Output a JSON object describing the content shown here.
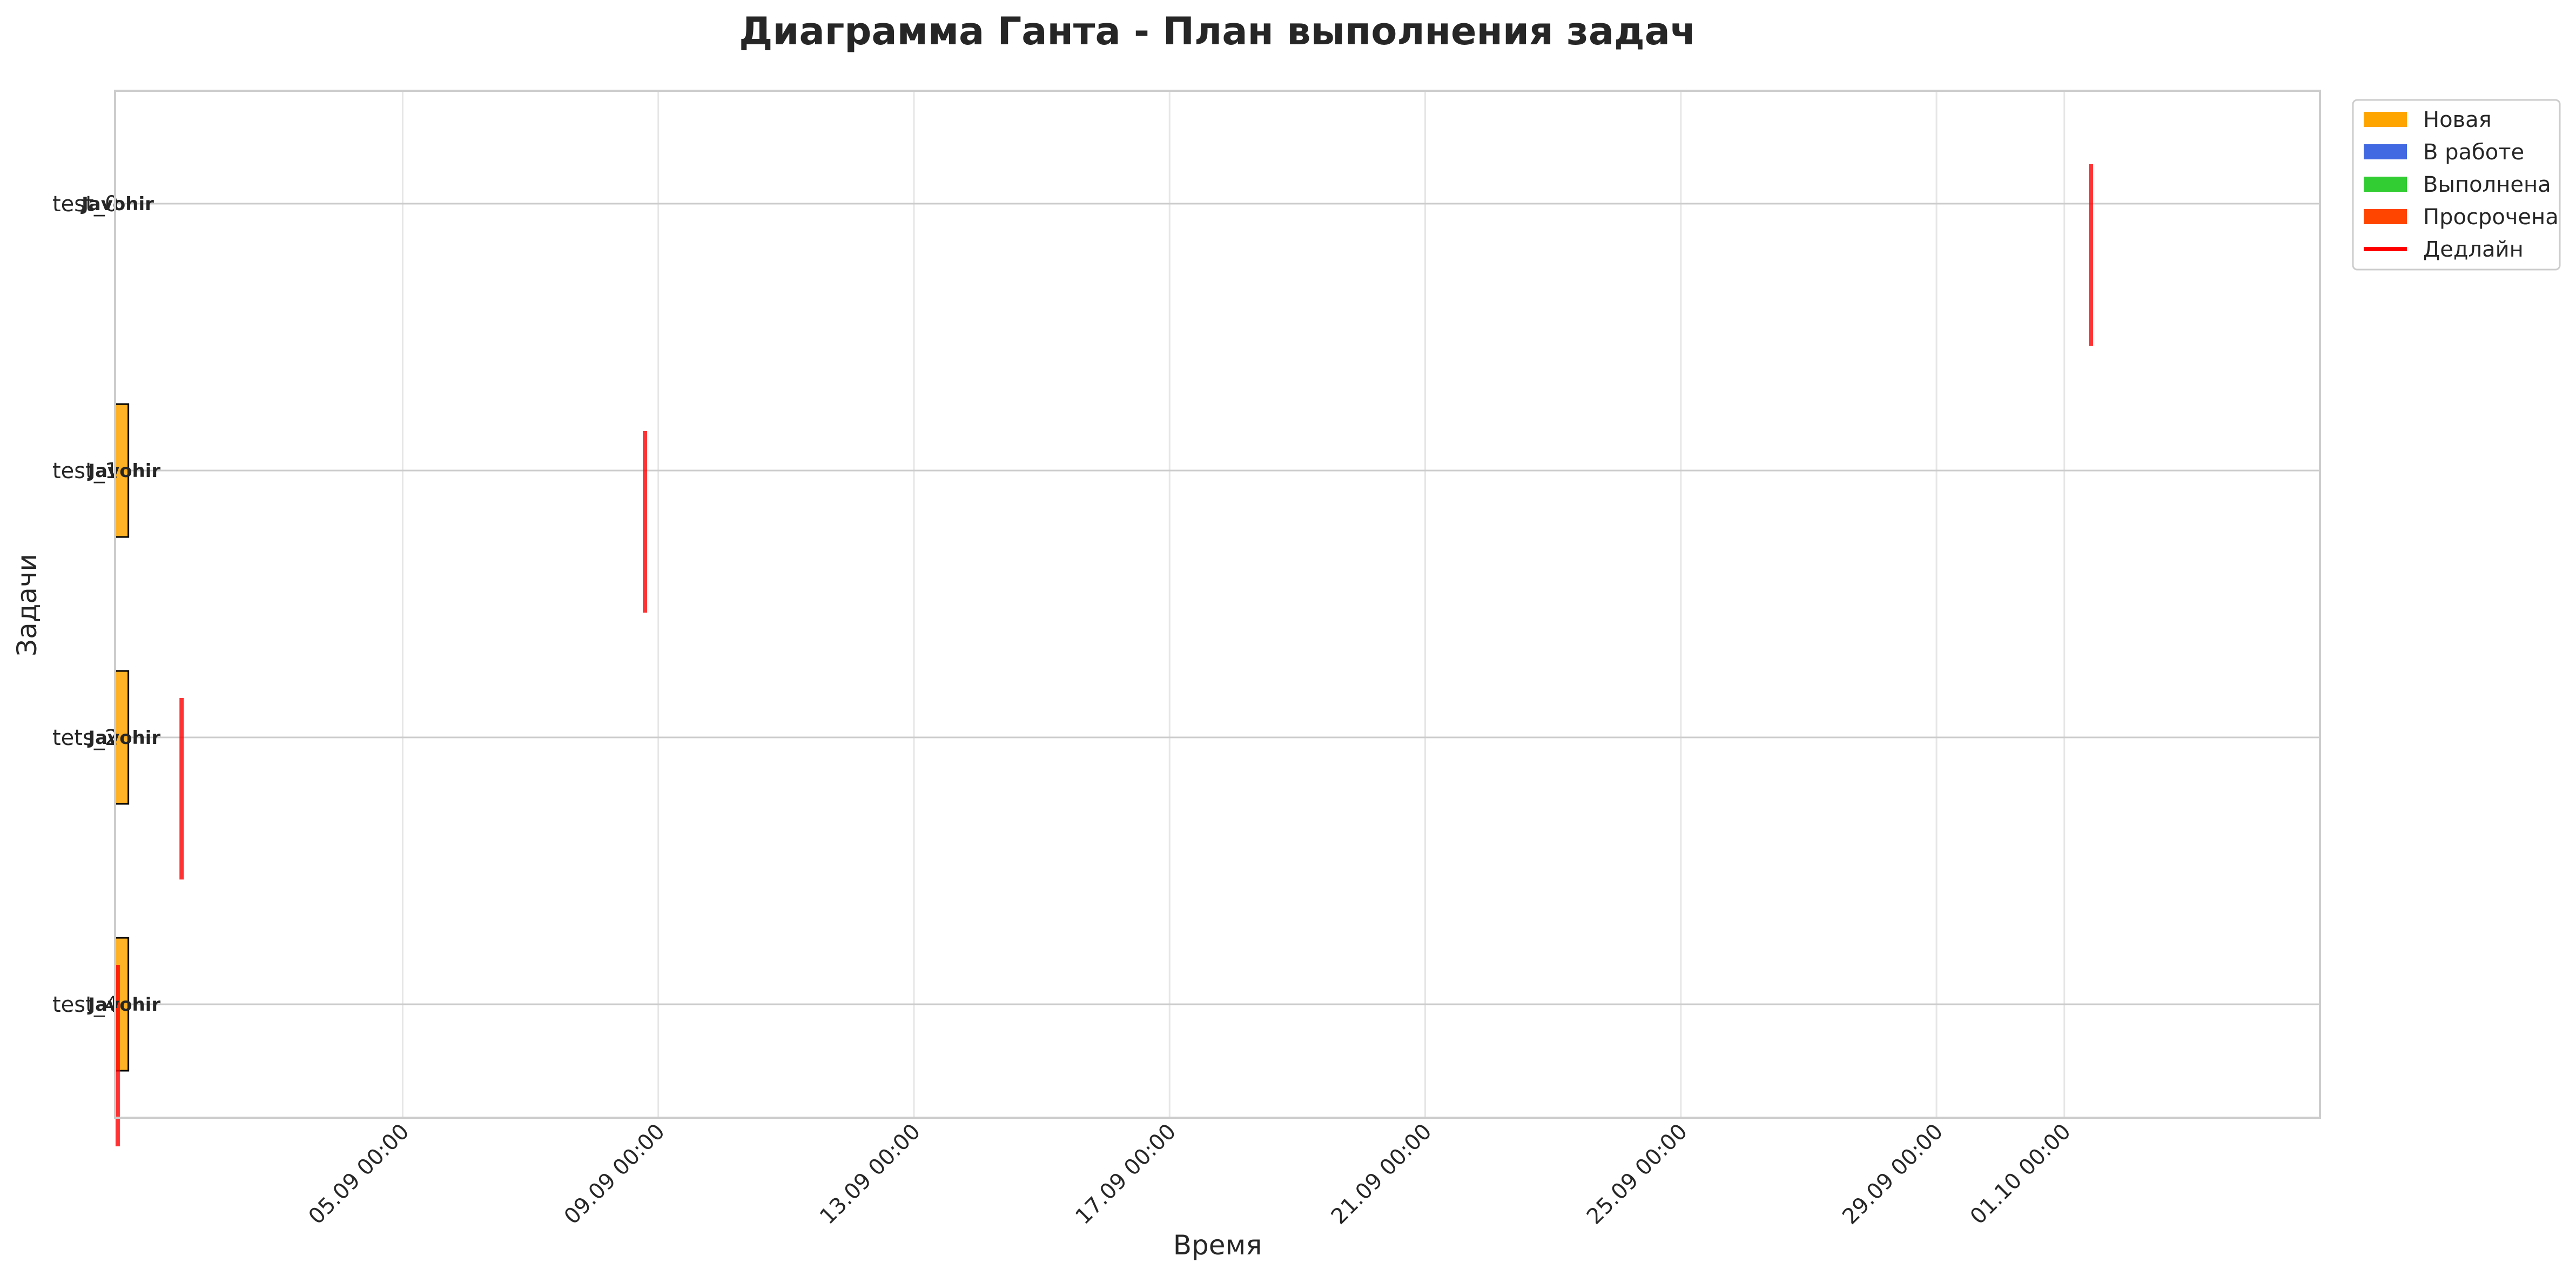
{
  "chart_data": {
    "type": "gantt",
    "title": "Диаграмма Ганта - План выполнения задач",
    "xlabel": "Время",
    "ylabel": "Задачи",
    "x_axis": "dates",
    "x_range": [
      "2025-08-31T12:00",
      "2025-10-05T00:00"
    ],
    "x_ticks": [
      {
        "value": "2025-09-05T00:00",
        "label": "05.09 00:00"
      },
      {
        "value": "2025-09-09T00:00",
        "label": "09.09 00:00"
      },
      {
        "value": "2025-09-13T00:00",
        "label": "13.09 00:00"
      },
      {
        "value": "2025-09-17T00:00",
        "label": "17.09 00:00"
      },
      {
        "value": "2025-09-21T00:00",
        "label": "21.09 00:00"
      },
      {
        "value": "2025-09-25T00:00",
        "label": "25.09 00:00"
      },
      {
        "value": "2025-09-29T00:00",
        "label": "29.09 00:00"
      },
      {
        "value": "2025-10-01T00:00",
        "label": "01.10 00:00"
      }
    ],
    "grid": true,
    "legend_position": "upper right, outside",
    "legend": [
      {
        "label": "Новая",
        "color": "#FFA500",
        "kind": "patch"
      },
      {
        "label": "В работе",
        "color": "#4169E1",
        "kind": "patch"
      },
      {
        "label": "Выполнена",
        "color": "#32CD32",
        "kind": "patch"
      },
      {
        "label": "Просрочена",
        "color": "#FF4500",
        "kind": "patch"
      },
      {
        "label": "Дедлайн",
        "color": "#FF0000",
        "kind": "line"
      }
    ],
    "tasks": [
      {
        "name": "test_0",
        "label": "Javohir",
        "status": "Новая",
        "start": "2025-08-31T12:00",
        "end": "2025-08-31T12:00",
        "deadline": "2025-10-01T10:00"
      },
      {
        "name": "test_1",
        "label": "Javohir",
        "status": "Новая",
        "start": "2025-08-31T12:00",
        "end": "2025-08-31T17:00",
        "deadline": "2025-09-08T19:00"
      },
      {
        "name": "tets_2",
        "label": "Javohir",
        "status": "Новая",
        "start": "2025-08-31T12:00",
        "end": "2025-08-31T17:00",
        "deadline": "2025-09-01T13:00"
      },
      {
        "name": "test_4",
        "label": "Javohir",
        "status": "Новая",
        "start": "2025-08-31T12:00",
        "end": "2025-08-31T17:00",
        "deadline": "2025-08-31T13:00"
      }
    ]
  }
}
